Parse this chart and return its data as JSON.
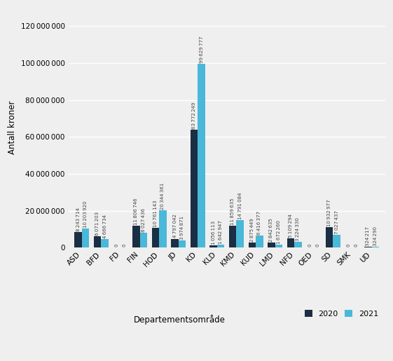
{
  "categories": [
    "ASD",
    "BFD",
    "FD",
    "FIN",
    "HOD",
    "JD",
    "KD",
    "KLD",
    "KMD",
    "KUD",
    "LMD",
    "NFD",
    "OED",
    "SD",
    "SMK",
    "UD"
  ],
  "values_2020": [
    8243714,
    6071203,
    0,
    11806746,
    10761143,
    4797042,
    63772249,
    1056113,
    11859635,
    2875449,
    2842635,
    5109294,
    0,
    10932977,
    0,
    324217
  ],
  "values_2021": [
    10203920,
    4666734,
    0,
    8027436,
    20344361,
    3974871,
    99629777,
    1642947,
    14791084,
    6416377,
    1672260,
    3224330,
    0,
    7027437,
    0,
    324290
  ],
  "color_2020": "#1a2e44",
  "color_2021": "#4ab8d8",
  "xlabel": "Departementsområde",
  "ylabel": "Antall kroner",
  "ylim": [
    0,
    130000000
  ],
  "yticks": [
    0,
    20000000,
    40000000,
    60000000,
    80000000,
    100000000,
    120000000
  ],
  "legend_2020": "2020",
  "legend_2021": "2021",
  "background_color": "#efefef",
  "grid_color": "#ffffff",
  "bar_width": 0.38
}
